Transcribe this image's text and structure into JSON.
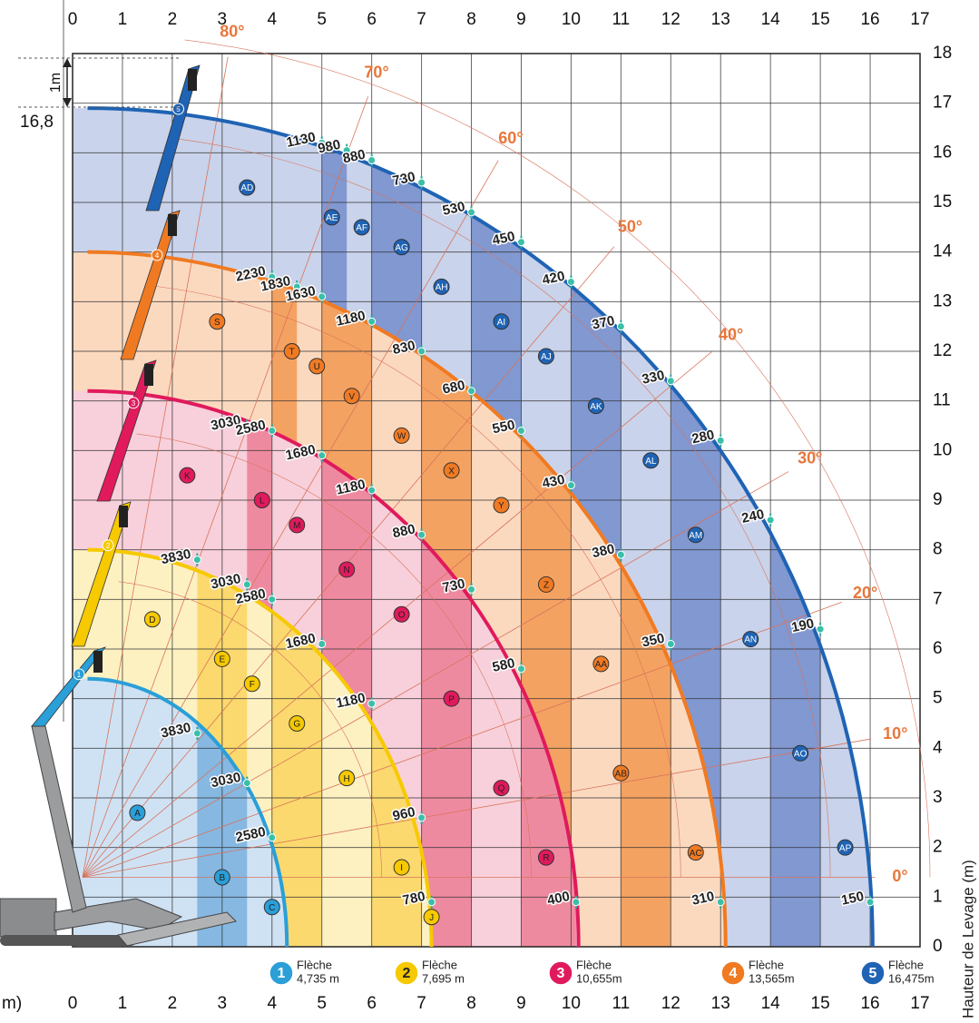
{
  "chart_data": {
    "type": "loadchart",
    "xlim": [
      0,
      17
    ],
    "ylim": [
      0,
      18
    ],
    "xticks": [
      0,
      1,
      2,
      3,
      4,
      5,
      6,
      7,
      8,
      9,
      10,
      11,
      12,
      13,
      14,
      15,
      16,
      17
    ],
    "yticks": [
      0,
      1,
      2,
      3,
      4,
      5,
      6,
      7,
      8,
      9,
      10,
      11,
      12,
      13,
      14,
      15,
      16,
      17,
      18
    ],
    "x_label": "m)",
    "y_label": "Hauteur de Levage (m)",
    "annotations": [
      "16,8",
      "1m"
    ],
    "angles": [
      {
        "value": 80,
        "label": "80°"
      },
      {
        "value": 70,
        "label": "70°"
      },
      {
        "value": 60,
        "label": "60°"
      },
      {
        "value": 50,
        "label": "50°"
      },
      {
        "value": 40,
        "label": "40°"
      },
      {
        "value": 30,
        "label": "30°"
      },
      {
        "value": 20,
        "label": "20°"
      },
      {
        "value": 10,
        "label": "10°"
      },
      {
        "value": 0,
        "label": "0°"
      }
    ],
    "booms": [
      {
        "number": 1,
        "name": "Flèche",
        "length": "4,735 m",
        "color": "#2a9fd8",
        "fill": [
          "#cfe2f4",
          "#86b8e2"
        ],
        "reach": [
          4.3,
          5.4
        ],
        "loads": [
          {
            "x": 2.5,
            "y": 4.3,
            "value": 3830
          },
          {
            "x": 3.5,
            "y": 3.3,
            "value": 3030
          },
          {
            "x": 4,
            "y": 2.2,
            "value": 2580
          }
        ],
        "zones": [
          {
            "label": "A",
            "x": 1.3,
            "y": 2.7
          },
          {
            "label": "B",
            "x": 3,
            "y": 1.4
          },
          {
            "label": "C",
            "x": 4,
            "y": 0.8
          }
        ]
      },
      {
        "number": 2,
        "name": "Flèche",
        "length": "7,695 m",
        "color": "#f6c900",
        "fill": [
          "#fdf1c2",
          "#fbd96e"
        ],
        "reach": [
          7.2,
          8.0
        ],
        "loads": [
          {
            "x": 2.5,
            "y": 7.8,
            "value": 3830
          },
          {
            "x": 3.5,
            "y": 7.3,
            "value": 3030
          },
          {
            "x": 4,
            "y": 7.0,
            "value": 2580
          },
          {
            "x": 5,
            "y": 6.1,
            "value": 1680
          },
          {
            "x": 6,
            "y": 4.9,
            "value": 1180
          },
          {
            "x": 7,
            "y": 2.6,
            "value": 960
          },
          {
            "x": 7.2,
            "y": 0.9,
            "value": 780
          }
        ],
        "zones": [
          {
            "label": "D",
            "x": 1.6,
            "y": 6.6
          },
          {
            "label": "E",
            "x": 3,
            "y": 5.8
          },
          {
            "label": "F",
            "x": 3.6,
            "y": 5.3
          },
          {
            "label": "G",
            "x": 4.5,
            "y": 4.5
          },
          {
            "label": "H",
            "x": 5.5,
            "y": 3.4
          },
          {
            "label": "I",
            "x": 6.6,
            "y": 1.6
          },
          {
            "label": "J",
            "x": 7.2,
            "y": 0.6
          }
        ]
      },
      {
        "number": 3,
        "name": "Flèche",
        "length": "10,655m",
        "color": "#e01a5c",
        "fill": [
          "#f8d0db",
          "#ee8aa0"
        ],
        "reach": [
          10.15,
          11.2
        ],
        "loads": [
          {
            "x": 3.5,
            "y": 10.5,
            "value": 3030
          },
          {
            "x": 4,
            "y": 10.4,
            "value": 2580
          },
          {
            "x": 5,
            "y": 9.9,
            "value": 1680
          },
          {
            "x": 6,
            "y": 9.2,
            "value": 1180
          },
          {
            "x": 7,
            "y": 8.3,
            "value": 880
          },
          {
            "x": 8,
            "y": 7.2,
            "value": 730
          },
          {
            "x": 9,
            "y": 5.6,
            "value": 580
          },
          {
            "x": 10.1,
            "y": 0.9,
            "value": 400
          }
        ],
        "zones": [
          {
            "label": "K",
            "x": 2.3,
            "y": 9.5
          },
          {
            "label": "L",
            "x": 3.8,
            "y": 9
          },
          {
            "label": "M",
            "x": 4.5,
            "y": 8.5
          },
          {
            "label": "N",
            "x": 5.5,
            "y": 7.6
          },
          {
            "label": "O",
            "x": 6.6,
            "y": 6.7
          },
          {
            "label": "P",
            "x": 7.6,
            "y": 5
          },
          {
            "label": "Q",
            "x": 8.6,
            "y": 3.2
          },
          {
            "label": "R",
            "x": 9.5,
            "y": 1.8
          }
        ]
      },
      {
        "number": 4,
        "name": "Flèche",
        "length": "13,565m",
        "color": "#f07a22",
        "fill": [
          "#fbd9bf",
          "#f4a262"
        ],
        "reach": [
          13.1,
          14.0
        ],
        "loads": [
          {
            "x": 4,
            "y": 13.5,
            "value": 2230
          },
          {
            "x": 4.5,
            "y": 13.3,
            "value": 1830
          },
          {
            "x": 5,
            "y": 13.1,
            "value": 1630
          },
          {
            "x": 6,
            "y": 12.6,
            "value": 1180
          },
          {
            "x": 7,
            "y": 12.0,
            "value": 830
          },
          {
            "x": 8,
            "y": 11.2,
            "value": 680
          },
          {
            "x": 9,
            "y": 10.4,
            "value": 550
          },
          {
            "x": 10,
            "y": 9.3,
            "value": 430
          },
          {
            "x": 11,
            "y": 7.9,
            "value": 380
          },
          {
            "x": 12,
            "y": 6.1,
            "value": 350
          },
          {
            "x": 13,
            "y": 0.9,
            "value": 310
          }
        ],
        "zones": [
          {
            "label": "S",
            "x": 2.9,
            "y": 12.6
          },
          {
            "label": "T",
            "x": 4.4,
            "y": 12
          },
          {
            "label": "U",
            "x": 4.9,
            "y": 11.7
          },
          {
            "label": "V",
            "x": 5.6,
            "y": 11.1
          },
          {
            "label": "W",
            "x": 6.6,
            "y": 10.3
          },
          {
            "label": "X",
            "x": 7.6,
            "y": 9.6
          },
          {
            "label": "Y",
            "x": 8.6,
            "y": 8.9
          },
          {
            "label": "Z",
            "x": 9.5,
            "y": 7.3
          },
          {
            "label": "AA",
            "x": 10.6,
            "y": 5.7
          },
          {
            "label": "AB",
            "x": 11,
            "y": 3.5
          },
          {
            "label": "AC",
            "x": 12.5,
            "y": 1.9
          }
        ]
      },
      {
        "number": 5,
        "name": "Flèche",
        "length": "16,475m",
        "color": "#1f63b4",
        "fill": [
          "#c9d3eb",
          "#8198d1"
        ],
        "reach": [
          16.05,
          16.9
        ],
        "loads": [
          {
            "x": 5,
            "y": 16.2,
            "value": 1130
          },
          {
            "x": 5.5,
            "y": 16.05,
            "value": 980
          },
          {
            "x": 6,
            "y": 15.85,
            "value": 880
          },
          {
            "x": 7,
            "y": 15.4,
            "value": 730
          },
          {
            "x": 8,
            "y": 14.8,
            "value": 530
          },
          {
            "x": 9,
            "y": 14.2,
            "value": 450
          },
          {
            "x": 10,
            "y": 13.4,
            "value": 420
          },
          {
            "x": 11,
            "y": 12.5,
            "value": 370
          },
          {
            "x": 12,
            "y": 11.4,
            "value": 330
          },
          {
            "x": 13,
            "y": 10.2,
            "value": 280
          },
          {
            "x": 14,
            "y": 8.6,
            "value": 240
          },
          {
            "x": 15,
            "y": 6.4,
            "value": 190
          },
          {
            "x": 16,
            "y": 0.9,
            "value": 150
          }
        ],
        "zones": [
          {
            "label": "AD",
            "x": 3.5,
            "y": 15.3
          },
          {
            "label": "AE",
            "x": 5.2,
            "y": 14.7
          },
          {
            "label": "AF",
            "x": 5.8,
            "y": 14.5
          },
          {
            "label": "AG",
            "x": 6.6,
            "y": 14.1
          },
          {
            "label": "AH",
            "x": 7.4,
            "y": 13.3
          },
          {
            "label": "AI",
            "x": 8.6,
            "y": 12.6
          },
          {
            "label": "AJ",
            "x": 9.5,
            "y": 11.9
          },
          {
            "label": "AK",
            "x": 10.5,
            "y": 10.9
          },
          {
            "label": "AL",
            "x": 11.6,
            "y": 9.8
          },
          {
            "label": "AM",
            "x": 12.5,
            "y": 8.3
          },
          {
            "label": "AN",
            "x": 13.6,
            "y": 6.2
          },
          {
            "label": "AO",
            "x": 14.6,
            "y": 3.9
          },
          {
            "label": "AP",
            "x": 15.5,
            "y": 2
          }
        ]
      }
    ]
  }
}
